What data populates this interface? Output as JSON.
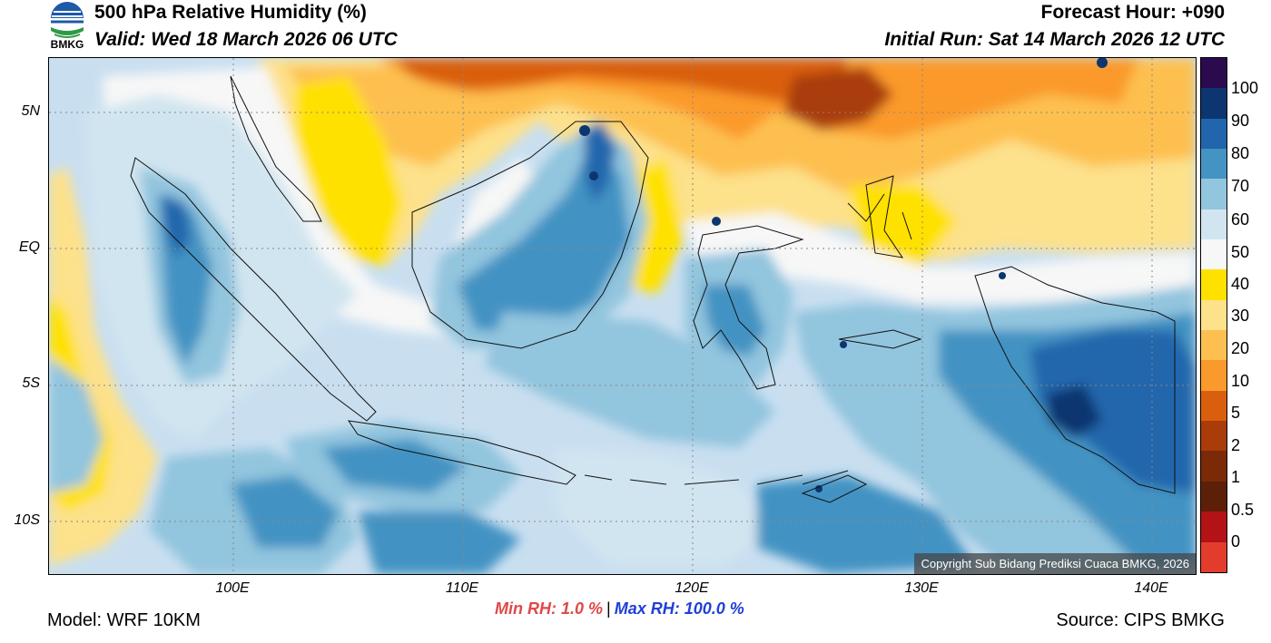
{
  "header": {
    "title": "500 hPa Relative Humidity (%)",
    "valid": "Valid: Wed 18 March 2026 06 UTC",
    "forecast_hour": "Forecast Hour: +090",
    "initial_run": "Initial Run: Sat 14 March 2026 12 UTC"
  },
  "logo": {
    "text": "BMKG",
    "colors": {
      "blue": "#1d5aa8",
      "green": "#2e9a46"
    }
  },
  "map": {
    "lat_labels": [
      "5N",
      "EQ",
      "5S",
      "10S"
    ],
    "lon_labels": [
      "100E",
      "110E",
      "120E",
      "130E",
      "140E"
    ],
    "copyright": "Copyright Sub Bidang Prediksi Cuaca BMKG, 2026"
  },
  "colorbar": {
    "labels": [
      "100",
      "90",
      "80",
      "70",
      "60",
      "50",
      "40",
      "30",
      "20",
      "10",
      "5",
      "2",
      "1",
      "0.5",
      "0"
    ],
    "colors": [
      "#2b0a4e",
      "#0d3570",
      "#2166ac",
      "#4393c3",
      "#92c5de",
      "#d1e5f0",
      "#f7f7f7",
      "#ffe100",
      "#fde18b",
      "#fdc050",
      "#fb9a2c",
      "#d95f0e",
      "#a93c09",
      "#7a2a07",
      "#5c2008",
      "#b31217",
      "#e43c2c"
    ]
  },
  "stats": {
    "min_rh": "Min RH:   1.0 %",
    "separator": "|",
    "max_rh": "Max RH: 100.0 %"
  },
  "footer": {
    "model": "Model: WRF 10KM",
    "source": "Source: CIPS BMKG"
  }
}
